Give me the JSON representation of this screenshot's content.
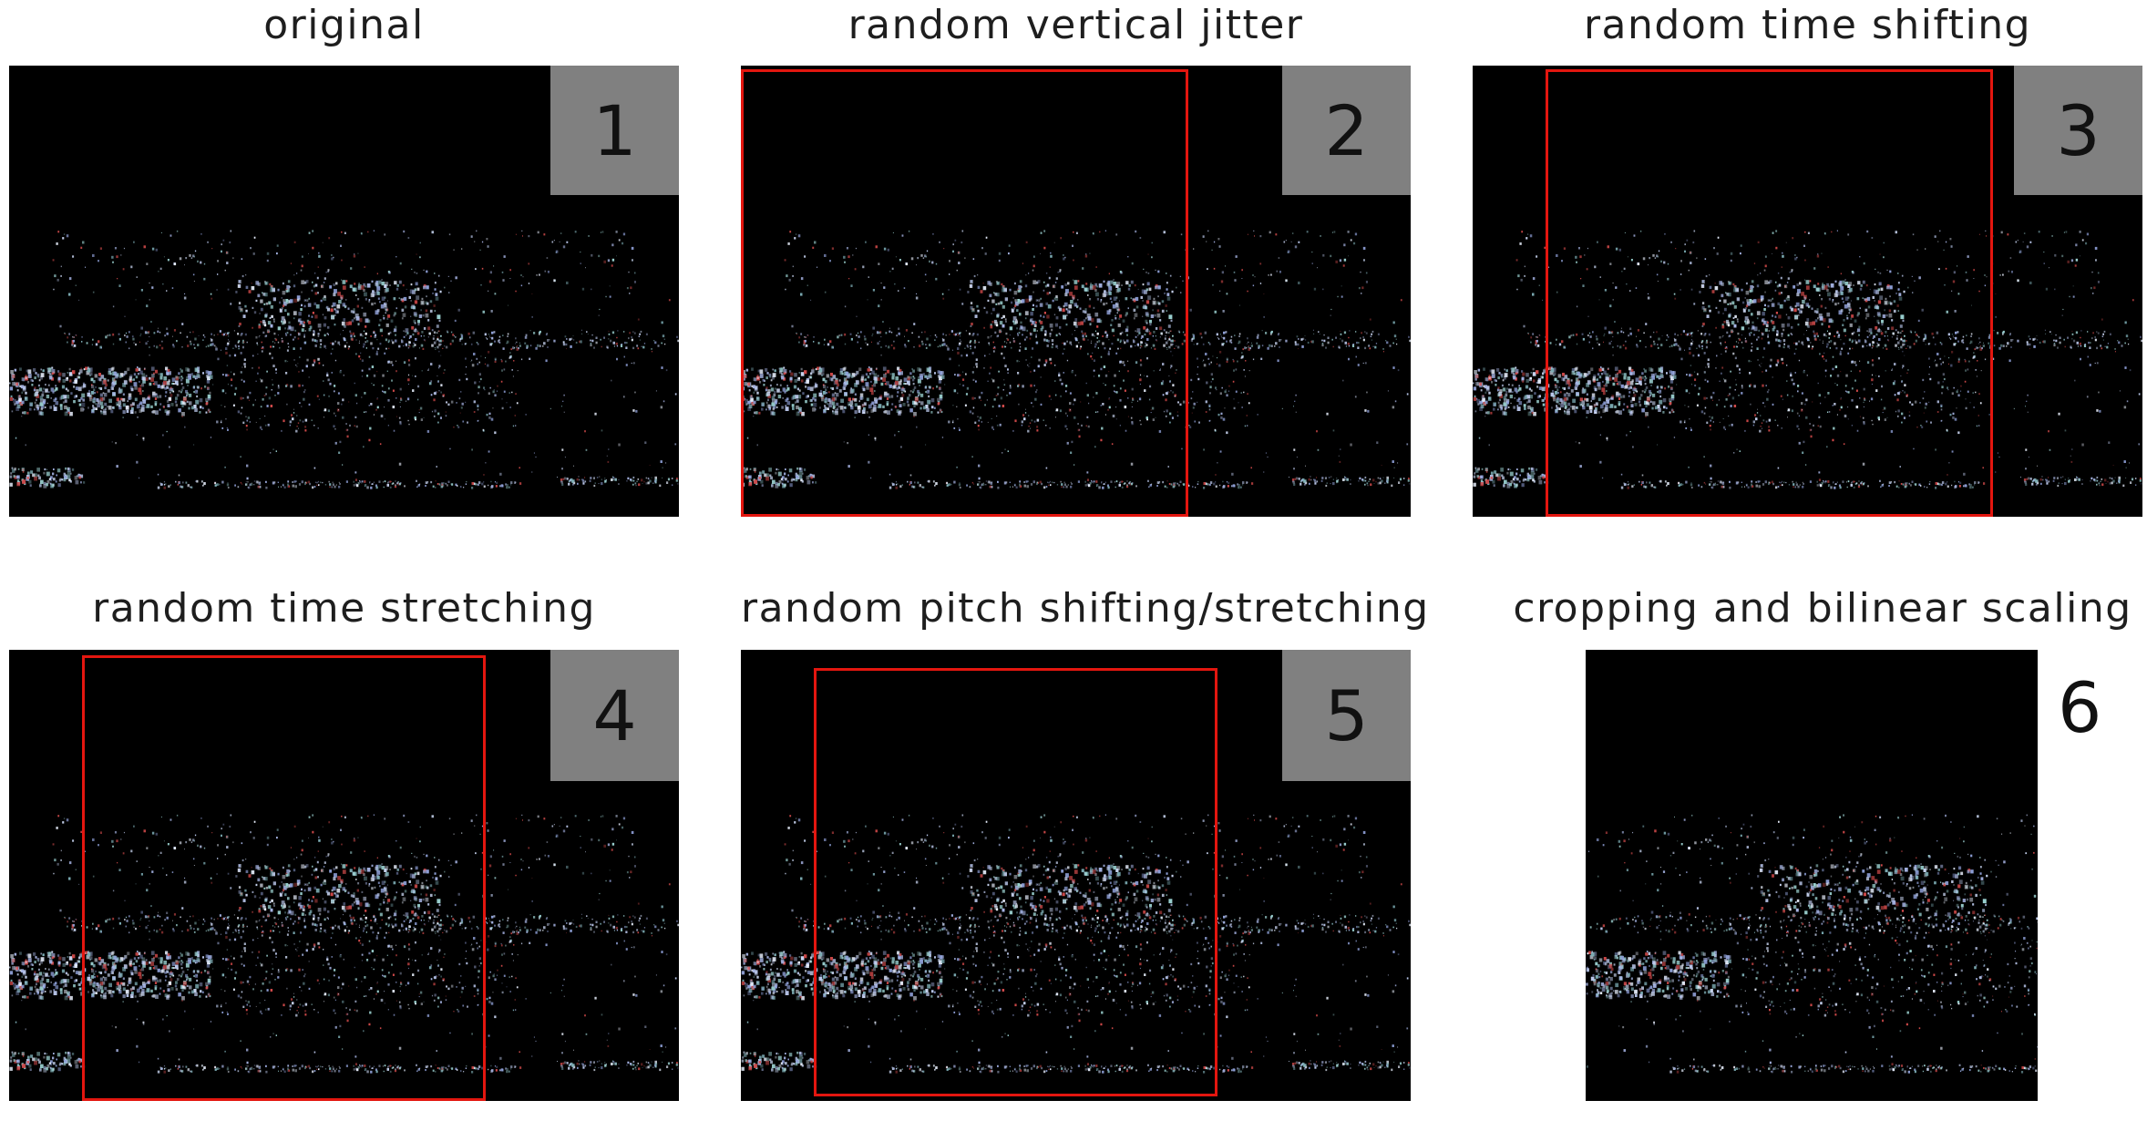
{
  "panels": [
    {
      "id": "p1",
      "title": "original",
      "number": "1"
    },
    {
      "id": "p2",
      "title": "random vertical jitter",
      "number": "2"
    },
    {
      "id": "p3",
      "title": "random time shifting",
      "number": "3"
    },
    {
      "id": "p4",
      "title": "random time stretching",
      "number": "4"
    },
    {
      "id": "p5",
      "title": "random pitch shifting/stretching",
      "number": "5"
    },
    {
      "id": "p6",
      "title": "cropping and bilinear scaling",
      "number": "6"
    }
  ],
  "colors": {
    "crop_box": "#e3160f",
    "number_box": "#808080",
    "spectrogram_bg": "#000000"
  }
}
